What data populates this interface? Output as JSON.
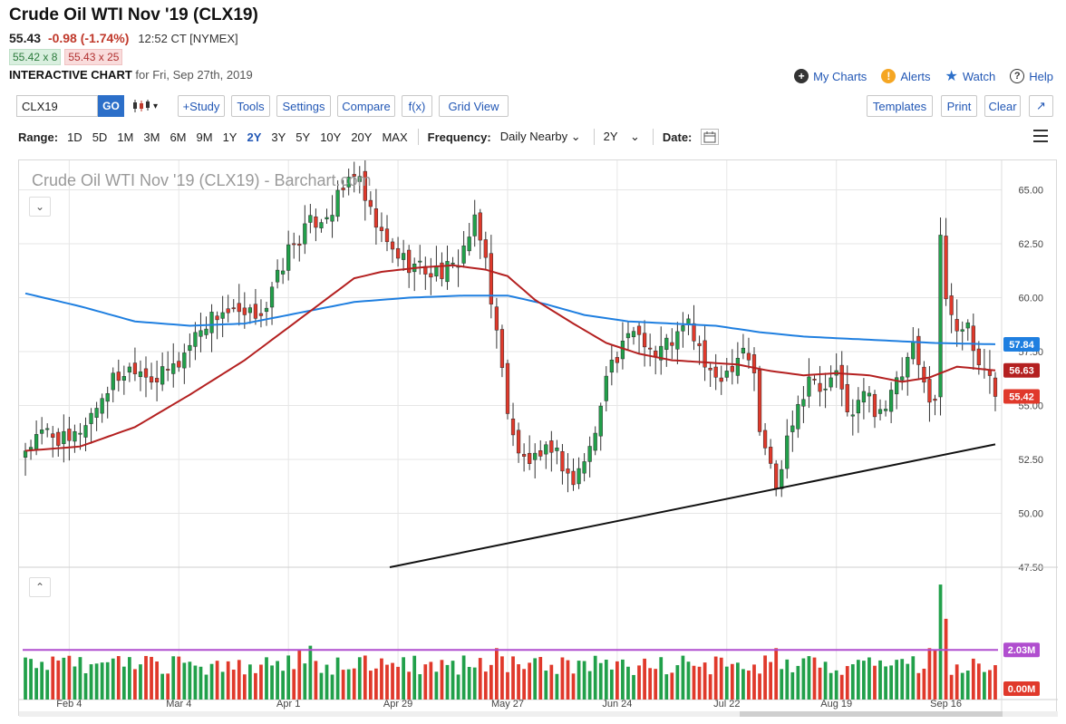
{
  "header": {
    "title": "Crude Oil WTI Nov '19 (CLX19)",
    "last": "55.43",
    "change": "-0.98 (-1.74%)",
    "time": "12:52 CT [NYMEX]",
    "bid": "55.42 x 8",
    "ask": "55.43 x 25",
    "interactive_label": "INTERACTIVE CHART",
    "interactive_date": "for Fri, Sep 27th, 2019"
  },
  "links": {
    "my_charts": "My Charts",
    "alerts": "Alerts",
    "watch": "Watch",
    "help": "Help"
  },
  "toolbar": {
    "symbol": "CLX19",
    "go": "GO",
    "study": "+Study",
    "tools": "Tools",
    "settings": "Settings",
    "compare": "Compare",
    "fx": "f(x)",
    "grid_view": "Grid View",
    "templates": "Templates",
    "print": "Print",
    "clear": "Clear"
  },
  "range": {
    "label": "Range:",
    "options": [
      "1D",
      "5D",
      "1M",
      "3M",
      "6M",
      "9M",
      "1Y",
      "2Y",
      "3Y",
      "5Y",
      "10Y",
      "20Y",
      "MAX"
    ],
    "active": "2Y",
    "frequency_label": "Frequency:",
    "frequency_value": "Daily Nearby",
    "period_value": "2Y",
    "date_label": "Date:"
  },
  "colors": {
    "up": "#21a04a",
    "down": "#e0392b",
    "ma_blue": "#1f7fe0",
    "ma_red": "#b42020",
    "volume_ma": "#b04ecf",
    "trend": "#111111",
    "link": "#2257b5"
  },
  "chart_data": {
    "type": "candlestick",
    "watermark": "Crude Oil WTI Nov '19 (CLX19) - Barchart.com",
    "ylim": [
      47.5,
      66.2
    ],
    "yticks": [
      47.5,
      50.0,
      52.5,
      55.0,
      57.5,
      60.0,
      62.5,
      65.0
    ],
    "ytick_labels": [
      "47.50",
      "50.00",
      "52.50",
      "55.00",
      "57.50",
      "60.00",
      "62.50",
      "65.00"
    ],
    "xtick_labels": [
      "Feb 4",
      "Mar 4",
      "Apr 1",
      "Apr 29",
      "May 27",
      "Jun 24",
      "Jul 22",
      "Aug 19",
      "Sep 16"
    ],
    "xtick_index": [
      8,
      28,
      48,
      68,
      88,
      108,
      128,
      148,
      168
    ],
    "close_anchors": [
      [
        0,
        53.0
      ],
      [
        4,
        53.8
      ],
      [
        8,
        53.2
      ],
      [
        12,
        54.6
      ],
      [
        16,
        56.2
      ],
      [
        20,
        56.9
      ],
      [
        24,
        56.2
      ],
      [
        28,
        57.0
      ],
      [
        32,
        58.7
      ],
      [
        36,
        59.4
      ],
      [
        40,
        59.0
      ],
      [
        44,
        59.6
      ],
      [
        48,
        62.2
      ],
      [
        52,
        63.4
      ],
      [
        56,
        64.1
      ],
      [
        60,
        65.9
      ],
      [
        63,
        63.8
      ],
      [
        66,
        62.4
      ],
      [
        70,
        61.6
      ],
      [
        74,
        61.2
      ],
      [
        78,
        61.3
      ],
      [
        82,
        63.4
      ],
      [
        84,
        61.8
      ],
      [
        86,
        58.3
      ],
      [
        88,
        54.9
      ],
      [
        90,
        52.6
      ],
      [
        94,
        52.3
      ],
      [
        96,
        53.2
      ],
      [
        100,
        51.4
      ],
      [
        104,
        53.6
      ],
      [
        106,
        56.8
      ],
      [
        108,
        57.1
      ],
      [
        111,
        58.6
      ],
      [
        113,
        58.1
      ],
      [
        115,
        57.3
      ],
      [
        117,
        57.9
      ],
      [
        119,
        58.2
      ],
      [
        121,
        58.8
      ],
      [
        123,
        57.6
      ],
      [
        125,
        56.2
      ],
      [
        128,
        56.6
      ],
      [
        131,
        57.8
      ],
      [
        133,
        56.6
      ],
      [
        134,
        53.6
      ],
      [
        136,
        52.4
      ],
      [
        137,
        51.0
      ],
      [
        139,
        53.8
      ],
      [
        141,
        55.0
      ],
      [
        143,
        56.4
      ],
      [
        145,
        55.6
      ],
      [
        148,
        56.3
      ],
      [
        151,
        54.4
      ],
      [
        153,
        55.7
      ],
      [
        155,
        54.9
      ],
      [
        157,
        55.0
      ],
      [
        160,
        56.4
      ],
      [
        162,
        57.6
      ],
      [
        164,
        55.9
      ],
      [
        166,
        55.3
      ],
      [
        167,
        62.7
      ],
      [
        168,
        60.1
      ],
      [
        170,
        58.8
      ],
      [
        172,
        58.4
      ],
      [
        173,
        57.6
      ],
      [
        174,
        56.9
      ],
      [
        176,
        56.6
      ],
      [
        177,
        55.42
      ]
    ],
    "volume_ylim": [
      0,
      5.0
    ],
    "volume_labels": {
      "ma": "2.03M",
      "zero": "0.00M"
    },
    "volume_ma": 2.03,
    "volume_spikes": [
      [
        167,
        4.7
      ],
      [
        168,
        3.3
      ],
      [
        166,
        2.0
      ],
      [
        165,
        2.1
      ],
      [
        137,
        2.1
      ],
      [
        135,
        1.8
      ],
      [
        86,
        2.1
      ],
      [
        83,
        1.7
      ],
      [
        52,
        2.2
      ],
      [
        50,
        2.0
      ],
      [
        48,
        1.8
      ]
    ],
    "ma50_anchors": [
      [
        0,
        52.9
      ],
      [
        10,
        53.1
      ],
      [
        20,
        54.0
      ],
      [
        30,
        55.5
      ],
      [
        40,
        57.1
      ],
      [
        50,
        59.0
      ],
      [
        60,
        60.9
      ],
      [
        65,
        61.2
      ],
      [
        72,
        61.4
      ],
      [
        78,
        61.5
      ],
      [
        84,
        61.3
      ],
      [
        88,
        61.0
      ],
      [
        93,
        59.9
      ],
      [
        100,
        58.8
      ],
      [
        106,
        57.9
      ],
      [
        112,
        57.4
      ],
      [
        118,
        57.1
      ],
      [
        124,
        57.0
      ],
      [
        130,
        56.9
      ],
      [
        136,
        56.6
      ],
      [
        142,
        56.4
      ],
      [
        148,
        56.5
      ],
      [
        154,
        56.4
      ],
      [
        160,
        56.1
      ],
      [
        165,
        56.3
      ],
      [
        170,
        56.8
      ],
      [
        177,
        56.63
      ]
    ],
    "ma200_anchors": [
      [
        0,
        60.2
      ],
      [
        10,
        59.6
      ],
      [
        20,
        58.9
      ],
      [
        30,
        58.7
      ],
      [
        40,
        58.8
      ],
      [
        50,
        59.3
      ],
      [
        60,
        59.8
      ],
      [
        70,
        60.0
      ],
      [
        80,
        60.1
      ],
      [
        88,
        60.1
      ],
      [
        95,
        59.7
      ],
      [
        102,
        59.2
      ],
      [
        110,
        58.9
      ],
      [
        118,
        58.8
      ],
      [
        126,
        58.7
      ],
      [
        134,
        58.4
      ],
      [
        142,
        58.2
      ],
      [
        150,
        58.1
      ],
      [
        158,
        58.0
      ],
      [
        166,
        57.9
      ],
      [
        177,
        57.84
      ]
    ],
    "trendline": [
      [
        66.5,
        47.5
      ],
      [
        177,
        53.2
      ]
    ],
    "last_labels": {
      "ma200": "57.84",
      "ma50": "56.63",
      "last": "55.42"
    }
  }
}
